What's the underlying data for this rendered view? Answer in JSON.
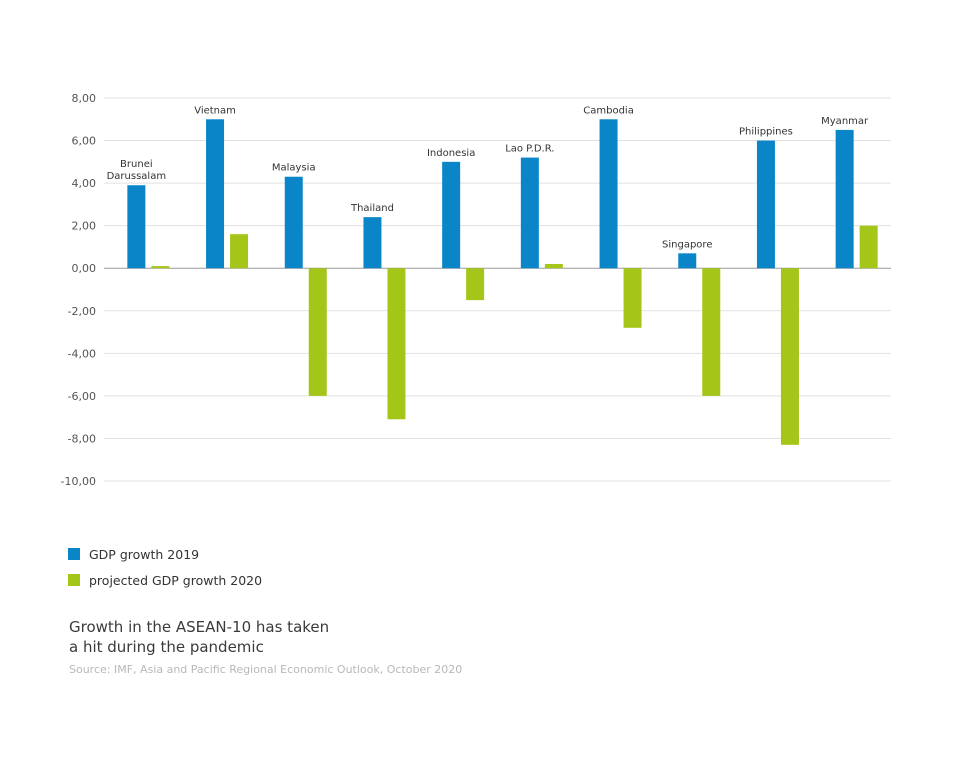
{
  "chart_data": {
    "type": "bar",
    "title": "",
    "categories": [
      "Brunei Darussalam",
      "Vietnam",
      "Malaysia",
      "Thailand",
      "Indonesia",
      "Lao P.D.R.",
      "Cambodia",
      "Singapore",
      "Philippines",
      "Myanmar"
    ],
    "category_labels": [
      [
        "Brunei",
        "Darussalam"
      ],
      [
        "Vietnam"
      ],
      [
        "Malaysia"
      ],
      [
        "Thailand"
      ],
      [
        "Indonesia"
      ],
      [
        "Lao P.D.R."
      ],
      [
        "Cambodia"
      ],
      [
        "Singapore"
      ],
      [
        "Philippines"
      ],
      [
        "Myanmar"
      ]
    ],
    "series": [
      {
        "name": "GDP growth 2019",
        "color": "#0a86c8",
        "values": [
          3.9,
          7.0,
          4.3,
          2.4,
          5.0,
          5.2,
          7.0,
          0.7,
          6.0,
          6.5
        ]
      },
      {
        "name": "projected GDP growth 2020",
        "color": "#a4c619",
        "values": [
          0.1,
          1.6,
          -6.0,
          -7.1,
          -1.5,
          0.2,
          -2.8,
          -6.0,
          -8.3,
          2.0
        ]
      }
    ],
    "ylim": [
      -10,
      8
    ],
    "yticks": [
      8,
      6,
      4,
      2,
      0,
      -2,
      -4,
      -6,
      -8,
      -10
    ],
    "ytick_labels": [
      "8,00",
      "6,00",
      "4,00",
      "2,00",
      "0,00",
      "-2,00",
      "-4,00",
      "-6,00",
      "-8,00",
      "-10,00"
    ],
    "xlabel": "",
    "ylabel": "",
    "grid": true,
    "legend_position": "bottom-left"
  },
  "caption": {
    "line1": "Growth in the ASEAN-10 has taken",
    "line2": "a hit during the pandemic",
    "source": "Source: IMF, Asia and Pacific Regional Economic Outlook, October 2020"
  }
}
